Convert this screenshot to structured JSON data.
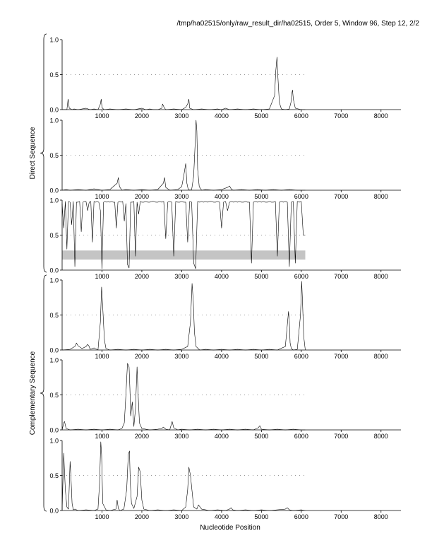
{
  "header": {
    "title": "/tmp/ha02515/only/raw_result_dir/ha02515, Order 5, Window 96, Step 12, 2/2"
  },
  "group_labels": {
    "direct": "Direct Sequence",
    "complementary": "Complementary Sequence"
  },
  "x_axis_label": "Nucleotide Position",
  "chart_data": [
    {
      "type": "line",
      "group": "direct",
      "frame": 1,
      "xlim": [
        0,
        8500
      ],
      "ylim": [
        0,
        1
      ],
      "x_ticks": [
        1000,
        2000,
        3000,
        4000,
        5000,
        6000,
        7000,
        8000
      ],
      "y_ticks": [
        0.0,
        0.5,
        1.0
      ],
      "y_tick_labels": [
        "0.0",
        "0.5",
        "1.0"
      ],
      "sequence_extent": [
        0,
        6100
      ],
      "series": [
        {
          "x": [
            0,
            120,
            150,
            180,
            250,
            300,
            400,
            500,
            600,
            700,
            800,
            900,
            960,
            980,
            1000,
            1050,
            1200,
            1400,
            1600,
            1800,
            2000,
            2100,
            2200,
            2300,
            2400,
            2500,
            2520,
            2560,
            2600,
            2800,
            3000,
            3100,
            3150,
            3180,
            3200,
            3300,
            3500,
            3700,
            3900,
            4000,
            4100,
            4200,
            4400,
            4600,
            4800,
            5000,
            5200,
            5330,
            5360,
            5390,
            5410,
            5450,
            5500,
            5600,
            5700,
            5740,
            5760,
            5780,
            5800,
            5850,
            6000,
            6100
          ],
          "y": [
            0,
            0,
            0.15,
            0.02,
            0,
            0.01,
            0,
            0.01,
            0.02,
            0,
            0.01,
            0,
            0.08,
            0.15,
            0.03,
            0,
            0.01,
            0,
            0.01,
            0,
            0.02,
            0,
            0.01,
            0,
            0,
            0.02,
            0.08,
            0.03,
            0,
            0.01,
            0,
            0.03,
            0.08,
            0.15,
            0.02,
            0,
            0.01,
            0,
            0.01,
            0,
            0.02,
            0,
            0.01,
            0,
            0.01,
            0,
            0.01,
            0.2,
            0.55,
            0.75,
            0.5,
            0.1,
            0.01,
            0,
            0.01,
            0.1,
            0.22,
            0.28,
            0.15,
            0.02,
            0,
            0
          ]
        }
      ]
    },
    {
      "type": "line",
      "group": "direct",
      "frame": 2,
      "xlim": [
        0,
        8500
      ],
      "ylim": [
        0,
        1
      ],
      "x_ticks": [
        1000,
        2000,
        3000,
        4000,
        5000,
        6000,
        7000,
        8000
      ],
      "y_ticks": [
        0.0,
        0.5,
        1.0
      ],
      "y_tick_labels": [
        "0.0",
        "0.5",
        "1.0"
      ],
      "sequence_extent": [
        0,
        6100
      ],
      "series": [
        {
          "x": [
            0,
            100,
            200,
            400,
            600,
            800,
            1000,
            1200,
            1380,
            1410,
            1440,
            1500,
            1600,
            1800,
            2000,
            2200,
            2400,
            2540,
            2570,
            2600,
            2700,
            2900,
            3000,
            3050,
            3100,
            3130,
            3160,
            3200,
            3250,
            3300,
            3340,
            3360,
            3380,
            3400,
            3440,
            3500,
            3600,
            3800,
            4000,
            4150,
            4200,
            4250,
            4300,
            4500,
            4700,
            4900,
            5100,
            5300,
            5500,
            5700,
            5900,
            6100
          ],
          "y": [
            0,
            0.01,
            0,
            0.01,
            0,
            0.02,
            0,
            0.01,
            0.1,
            0.18,
            0.05,
            0,
            0.01,
            0,
            0.01,
            0,
            0.01,
            0.1,
            0.18,
            0.04,
            0,
            0.01,
            0.05,
            0.2,
            0.38,
            0.1,
            0.02,
            0,
            0.01,
            0.2,
            0.7,
            1.0,
            0.85,
            0.3,
            0.05,
            0,
            0.01,
            0,
            0.01,
            0.04,
            0.06,
            0.01,
            0,
            0.01,
            0,
            0.01,
            0,
            0.01,
            0,
            0.01,
            0,
            0
          ]
        }
      ]
    },
    {
      "type": "line",
      "group": "direct",
      "frame": 3,
      "xlim": [
        0,
        8500
      ],
      "ylim": [
        0,
        1
      ],
      "x_ticks": [
        1000,
        2000,
        3000,
        4000,
        5000,
        6000,
        7000,
        8000
      ],
      "y_ticks": [
        0.0,
        0.5,
        1.0
      ],
      "y_tick_labels": [
        "0.0",
        "0.5",
        "1.0"
      ],
      "sequence_extent": [
        0,
        6100
      ],
      "band": {
        "x": [
          0,
          6100
        ],
        "y": [
          0.15,
          0.28
        ]
      },
      "series": [
        {
          "x": [
            0,
            40,
            80,
            120,
            160,
            200,
            240,
            280,
            320,
            360,
            400,
            440,
            480,
            520,
            560,
            600,
            640,
            680,
            720,
            760,
            800,
            840,
            880,
            920,
            960,
            1000,
            1040,
            1080,
            1120,
            1160,
            1200,
            1240,
            1280,
            1320,
            1360,
            1400,
            1440,
            1480,
            1520,
            1560,
            1600,
            1640,
            1680,
            1720,
            1760,
            1800,
            1840,
            1880,
            1920,
            1960,
            2000,
            2050,
            2100,
            2150,
            2200,
            2250,
            2300,
            2350,
            2400,
            2450,
            2500,
            2550,
            2600,
            2650,
            2700,
            2750,
            2800,
            2850,
            2900,
            2950,
            3000,
            3050,
            3100,
            3150,
            3200,
            3250,
            3300,
            3350,
            3400,
            3450,
            3500,
            3550,
            3600,
            3650,
            3700,
            3750,
            3800,
            3850,
            3900,
            3950,
            4000,
            4050,
            4100,
            4150,
            4200,
            4250,
            4300,
            4350,
            4400,
            4450,
            4500,
            4550,
            4600,
            4650,
            4700,
            4750,
            4800,
            4850,
            4900,
            4950,
            5000,
            5050,
            5100,
            5150,
            5200,
            5250,
            5300,
            5350,
            5400,
            5450,
            5500,
            5550,
            5600,
            5650,
            5700,
            5750,
            5800,
            5850,
            5900,
            5950,
            6000,
            6050,
            6100
          ],
          "y": [
            0.95,
            0.6,
            0.98,
            0.3,
            0.98,
            0.97,
            0.65,
            0.98,
            0.05,
            0.97,
            0.97,
            0.98,
            0.55,
            0.97,
            0.98,
            0.98,
            0.85,
            0.97,
            0.98,
            0.4,
            0.98,
            0.97,
            0.98,
            0.97,
            0.85,
            0.02,
            0.97,
            0.98,
            0.97,
            0.98,
            0.97,
            0.98,
            0.97,
            0.97,
            0.6,
            0.97,
            0.98,
            0.97,
            0.98,
            0.7,
            0.95,
            0.08,
            0.03,
            0.97,
            0.97,
            0.98,
            0.2,
            0.97,
            0.8,
            0.98,
            0.97,
            0.97,
            0.98,
            0.97,
            0.97,
            0.98,
            0.98,
            0.97,
            0.97,
            0.98,
            0.97,
            0.98,
            0.45,
            0.97,
            0.98,
            0.97,
            0.2,
            0.98,
            0.97,
            0.97,
            0.98,
            0.97,
            0.97,
            0.4,
            0.98,
            0.97,
            0.1,
            0.02,
            0.98,
            0.97,
            0.98,
            0.97,
            0.98,
            0.97,
            0.98,
            0.98,
            0.97,
            0.97,
            0.98,
            0.97,
            0.6,
            0.97,
            0.98,
            0.85,
            0.97,
            0.98,
            0.97,
            0.98,
            0.97,
            0.98,
            0.97,
            0.97,
            0.98,
            0.97,
            0.97,
            0.1,
            0.97,
            0.98,
            0.97,
            0.98,
            0.97,
            0.98,
            0.97,
            0.97,
            0.98,
            0.97,
            0.97,
            0.98,
            0.2,
            0.97,
            0.98,
            0.97,
            0.98,
            0.97,
            0.05,
            0.97,
            0.98,
            0.1,
            0.98,
            0.97,
            0.98,
            0.5,
            0.5
          ]
        }
      ]
    },
    {
      "type": "line",
      "group": "complementary",
      "frame": 1,
      "xlim": [
        0,
        8500
      ],
      "ylim": [
        0,
        1
      ],
      "x_ticks": [
        1000,
        2000,
        3000,
        4000,
        5000,
        6000,
        7000,
        8000
      ],
      "y_ticks": [
        0.0,
        0.5,
        1.0
      ],
      "y_tick_labels": [
        "0.0",
        "0.5",
        "1.0"
      ],
      "sequence_extent": [
        0,
        6100
      ],
      "series": [
        {
          "x": [
            0,
            200,
            320,
            360,
            400,
            500,
            600,
            640,
            680,
            700,
            800,
            900,
            960,
            990,
            1020,
            1060,
            1100,
            1200,
            1400,
            1600,
            1800,
            2000,
            2200,
            2400,
            2600,
            2800,
            3000,
            3150,
            3220,
            3260,
            3290,
            3320,
            3360,
            3450,
            3600,
            3800,
            4000,
            4200,
            4400,
            4600,
            4800,
            5000,
            5200,
            5400,
            5600,
            5640,
            5680,
            5700,
            5720,
            5750,
            5800,
            5900,
            5980,
            6010,
            6030,
            6060,
            6100
          ],
          "y": [
            0,
            0.01,
            0.05,
            0.1,
            0.06,
            0.02,
            0.05,
            0.08,
            0.05,
            0.01,
            0.03,
            0,
            0.4,
            0.9,
            0.6,
            0.15,
            0.02,
            0,
            0.01,
            0,
            0.01,
            0,
            0.01,
            0,
            0.01,
            0,
            0.01,
            0.05,
            0.4,
            0.95,
            0.7,
            0.25,
            0.05,
            0,
            0.01,
            0,
            0.01,
            0,
            0.01,
            0,
            0.01,
            0,
            0.01,
            0,
            0.05,
            0.3,
            0.55,
            0.4,
            0.1,
            0.02,
            0,
            0.01,
            0.5,
            0.98,
            0.7,
            0.2,
            0
          ]
        }
      ]
    },
    {
      "type": "line",
      "group": "complementary",
      "frame": 2,
      "xlim": [
        0,
        8500
      ],
      "ylim": [
        0,
        1
      ],
      "x_ticks": [
        1000,
        2000,
        3000,
        4000,
        5000,
        6000,
        7000,
        8000
      ],
      "y_ticks": [
        0.0,
        0.5,
        1.0
      ],
      "y_tick_labels": [
        "0.0",
        "0.5",
        "1.0"
      ],
      "sequence_extent": [
        0,
        6100
      ],
      "series": [
        {
          "x": [
            0,
            40,
            60,
            100,
            200,
            400,
            600,
            800,
            1000,
            1200,
            1400,
            1500,
            1560,
            1600,
            1640,
            1680,
            1700,
            1720,
            1760,
            1800,
            1840,
            1880,
            1900,
            1940,
            2000,
            2200,
            2400,
            2500,
            2540,
            2600,
            2700,
            2760,
            2800,
            2900,
            3000,
            3200,
            3400,
            3600,
            3800,
            4000,
            4200,
            4400,
            4600,
            4800,
            4920,
            4960,
            5000,
            5200,
            5400,
            5600,
            5800,
            6000,
            6100
          ],
          "y": [
            0,
            0.1,
            0.12,
            0.02,
            0,
            0.01,
            0,
            0.01,
            0,
            0.01,
            0,
            0.02,
            0.1,
            0.5,
            0.95,
            0.9,
            0.6,
            0.2,
            0.4,
            0.05,
            0.3,
            0.9,
            0.6,
            0.1,
            0.02,
            0,
            0.01,
            0.02,
            0.04,
            0.01,
            0,
            0.12,
            0.03,
            0,
            0.01,
            0,
            0.01,
            0,
            0.01,
            0,
            0.01,
            0,
            0.01,
            0,
            0.03,
            0.06,
            0.01,
            0,
            0.01,
            0,
            0.01,
            0,
            0
          ]
        }
      ]
    },
    {
      "type": "line",
      "group": "complementary",
      "frame": 3,
      "xlim": [
        0,
        8500
      ],
      "ylim": [
        0,
        1
      ],
      "x_ticks": [
        1000,
        2000,
        3000,
        4000,
        5000,
        6000,
        7000,
        8000
      ],
      "y_ticks": [
        0.0,
        0.5,
        1.0
      ],
      "y_tick_labels": [
        "0.0",
        "0.5",
        "1.0"
      ],
      "sequence_extent": [
        0,
        6100
      ],
      "series": [
        {
          "x": [
            0,
            40,
            80,
            120,
            160,
            200,
            220,
            250,
            280,
            320,
            400,
            600,
            800,
            900,
            940,
            970,
            990,
            1020,
            1100,
            1200,
            1350,
            1380,
            1410,
            1450,
            1550,
            1620,
            1660,
            1690,
            1710,
            1740,
            1800,
            1880,
            1920,
            1960,
            2000,
            2050,
            2200,
            2400,
            2600,
            2800,
            3000,
            3100,
            3150,
            3180,
            3220,
            3300,
            3380,
            3420,
            3500,
            3700,
            3900,
            4100,
            4200,
            4240,
            4280,
            4400,
            4600,
            4800,
            5000,
            5200,
            5400,
            5600,
            5650,
            5700,
            5800,
            6000,
            6100
          ],
          "y": [
            0,
            0.82,
            0.3,
            0.05,
            0.02,
            0.7,
            0.5,
            0.1,
            0.01,
            0.02,
            0,
            0.01,
            0,
            0.02,
            0.4,
            0.98,
            0.8,
            0.1,
            0.01,
            0,
            0.02,
            0.15,
            0.03,
            0,
            0.02,
            0.3,
            0.8,
            0.85,
            0.4,
            0.1,
            0.03,
            0.2,
            0.62,
            0.55,
            0.15,
            0.02,
            0,
            0.01,
            0,
            0.01,
            0,
            0.05,
            0.3,
            0.62,
            0.5,
            0.05,
            0.02,
            0.08,
            0.02,
            0,
            0.01,
            0,
            0.02,
            0.04,
            0.01,
            0,
            0.01,
            0,
            0.01,
            0,
            0.01,
            0.02,
            0.04,
            0.01,
            0,
            0.01,
            0
          ]
        }
      ]
    }
  ]
}
